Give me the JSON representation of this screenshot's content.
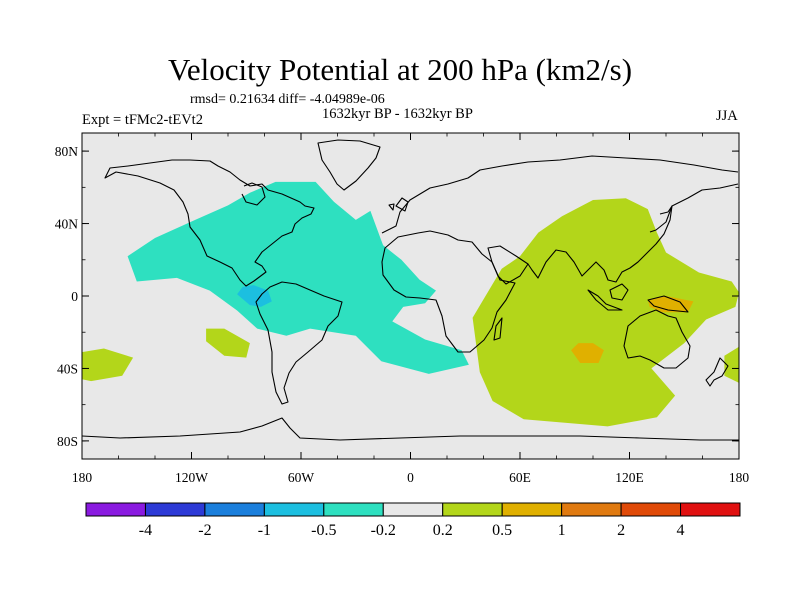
{
  "title": "Velocity Potential at 200 hPa (km2/s)",
  "stats_line": "rmsd= 0.21634 diff= -4.04989e-06",
  "period": "1632kyr BP - 1632kyr BP",
  "experiment": "Expt = tFMc2-tEVt2",
  "season": "JJA",
  "chart_data": {
    "type": "filled-contour-map",
    "projection": "cylindrical-equidistant",
    "lon_range": [
      -180,
      180
    ],
    "lat_range": [
      -90,
      90
    ],
    "x_ticks": [
      {
        "value": -180,
        "label": "180"
      },
      {
        "value": -120,
        "label": "120W"
      },
      {
        "value": -60,
        "label": "60W"
      },
      {
        "value": 0,
        "label": "0"
      },
      {
        "value": 60,
        "label": "60E"
      },
      {
        "value": 120,
        "label": "120E"
      },
      {
        "value": 180,
        "label": "180"
      }
    ],
    "y_ticks": [
      {
        "value": 80,
        "label": "80N"
      },
      {
        "value": 40,
        "label": "40N"
      },
      {
        "value": 0,
        "label": "0"
      },
      {
        "value": -40,
        "label": "40S"
      },
      {
        "value": -80,
        "label": "80S"
      }
    ],
    "background_color": "#e8e8e8",
    "colorbar": {
      "labels": [
        "-4",
        "-2",
        "-1",
        "-0.5",
        "-0.2",
        "0.2",
        "0.5",
        "1",
        "2",
        "4"
      ],
      "colors": [
        "#8a1ae0",
        "#2d3ad6",
        "#1b7fdc",
        "#1cbfe0",
        "#2ee0c0",
        "#e8e8e8",
        "#b3d61a",
        "#e0b000",
        "#e07a10",
        "#e04a08",
        "#e01010"
      ]
    },
    "regions": [
      {
        "name": "atlantic-americas-negative",
        "range": "-0.5 to -0.2",
        "color": "#2ee0c0",
        "polygon": [
          [
            -150,
            8
          ],
          [
            -155,
            22
          ],
          [
            -140,
            32
          ],
          [
            -118,
            42
          ],
          [
            -100,
            50
          ],
          [
            -88,
            57
          ],
          [
            -74,
            63
          ],
          [
            -52,
            63
          ],
          [
            -42,
            52
          ],
          [
            -30,
            42
          ],
          [
            -22,
            47
          ],
          [
            -15,
            28
          ],
          [
            -5,
            20
          ],
          [
            5,
            9
          ],
          [
            14,
            3
          ],
          [
            8,
            -4
          ],
          [
            -4,
            -6
          ],
          [
            -10,
            -14
          ],
          [
            8,
            -24
          ],
          [
            28,
            -30
          ],
          [
            32,
            -38
          ],
          [
            10,
            -43
          ],
          [
            -16,
            -36
          ],
          [
            -30,
            -22
          ],
          [
            -55,
            -18
          ],
          [
            -68,
            -22
          ],
          [
            -84,
            -18
          ],
          [
            -95,
            -8
          ],
          [
            -110,
            3
          ],
          [
            -128,
            10
          ]
        ]
      },
      {
        "name": "amazon-minimum",
        "range": "-1 to -0.5",
        "color": "#1cbfe0",
        "polygon": [
          [
            -95,
            1
          ],
          [
            -92,
            5
          ],
          [
            -86,
            6
          ],
          [
            -78,
            3
          ],
          [
            -76,
            -3
          ],
          [
            -82,
            -6
          ],
          [
            -88,
            -5
          ]
        ]
      },
      {
        "name": "indian-pacific-positive",
        "range": "0.2 to 0.5",
        "color": "#b3d61a",
        "polygon": [
          [
            34,
            -12
          ],
          [
            38,
            -42
          ],
          [
            45,
            -58
          ],
          [
            62,
            -68
          ],
          [
            108,
            -72
          ],
          [
            135,
            -67
          ],
          [
            145,
            -55
          ],
          [
            132,
            -40
          ],
          [
            150,
            -26
          ],
          [
            162,
            -13
          ],
          [
            178,
            -6
          ],
          [
            180,
            2
          ],
          [
            176,
            8
          ],
          [
            158,
            13
          ],
          [
            140,
            24
          ],
          [
            135,
            35
          ],
          [
            130,
            48
          ],
          [
            118,
            54
          ],
          [
            100,
            53
          ],
          [
            83,
            44
          ],
          [
            70,
            35
          ],
          [
            60,
            22
          ],
          [
            50,
            15
          ]
        ]
      },
      {
        "name": "arabian-sea-patch",
        "range": "0.2 to 0.5",
        "color": "#b3d61a",
        "polygon": [
          [
            54,
            3
          ],
          [
            58,
            6
          ],
          [
            62,
            3
          ],
          [
            61,
            -3
          ],
          [
            56,
            -4
          ]
        ]
      },
      {
        "name": "south-pacific-patch-west",
        "range": "0.2 to 0.5",
        "color": "#b3d61a",
        "polygon": [
          [
            -180,
            -31
          ],
          [
            -168,
            -29
          ],
          [
            -152,
            -34
          ],
          [
            -158,
            -44
          ],
          [
            -175,
            -47
          ],
          [
            -180,
            -46
          ]
        ]
      },
      {
        "name": "south-pacific-patch-mid",
        "range": "0.2 to 0.5",
        "color": "#b3d61a",
        "polygon": [
          [
            -112,
            -18
          ],
          [
            -102,
            -18
          ],
          [
            -88,
            -26
          ],
          [
            -90,
            -34
          ],
          [
            -102,
            -33
          ],
          [
            -112,
            -25
          ]
        ]
      },
      {
        "name": "east-pacific-edge-patch",
        "range": "0.2 to 0.5",
        "color": "#b3d61a",
        "polygon": [
          [
            172,
            -33
          ],
          [
            180,
            -28
          ],
          [
            180,
            -48
          ],
          [
            172,
            -44
          ]
        ]
      },
      {
        "name": "maritime-continent-maximum",
        "range": "0.5 to 1",
        "color": "#e0b000",
        "polygon": [
          [
            130,
            -2
          ],
          [
            140,
            0
          ],
          [
            155,
            -3
          ],
          [
            152,
            -9
          ],
          [
            138,
            -9
          ],
          [
            131,
            -6
          ]
        ]
      },
      {
        "name": "indian-ocean-maximum",
        "range": "0.5 to 1",
        "color": "#e0b000",
        "polygon": [
          [
            88,
            -30
          ],
          [
            92,
            -26
          ],
          [
            100,
            -26
          ],
          [
            106,
            -30
          ],
          [
            103,
            -37
          ],
          [
            93,
            -37
          ]
        ]
      }
    ]
  }
}
